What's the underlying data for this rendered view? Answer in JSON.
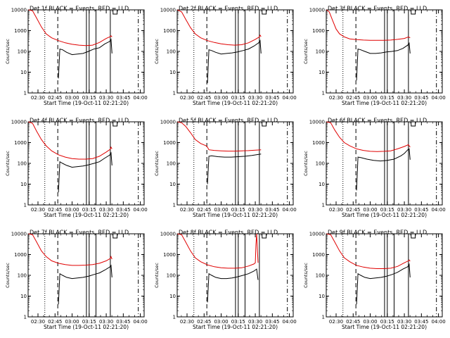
{
  "ylabel": "Counts/sec",
  "xlabel": "Start Time (19-Oct-11 02:21:20)",
  "xticks": [
    "02:30",
    "02:45",
    "03:00",
    "03:15",
    "03:30",
    "03:45",
    "04:00"
  ],
  "xlim": [
    2.3556,
    4.0556
  ],
  "yticks": [
    "1",
    "10",
    "100",
    "1000",
    "10000"
  ],
  "ylim": [
    1,
    10000
  ],
  "yscale": "log",
  "colors": {
    "events": "#000000",
    "lld": "#e00000",
    "axes": "#000000"
  },
  "markers": [
    {
      "style": "dotted",
      "time": 2.6
    },
    {
      "style": "dashed",
      "time": 2.79
    },
    {
      "style": "solid",
      "time": 3.21
    },
    {
      "style": "solid",
      "time": 3.25
    },
    {
      "style": "solid",
      "time": 3.35
    },
    {
      "style": "solid",
      "time": 3.56
    },
    {
      "style": "dashdot",
      "time": 3.97
    }
  ],
  "chart_data": [
    {
      "type": "line",
      "title": "Det 1f BLACK = Events, RED = LLD",
      "series": [
        {
          "name": "Events",
          "x": [
            2.36,
            2.45,
            2.55,
            2.65,
            2.72,
            2.78,
            2.8,
            2.82,
            2.86,
            2.92,
            3.0,
            3.08,
            3.16,
            3.24,
            3.32,
            3.4,
            3.48,
            3.55,
            3.57,
            3.585
          ],
          "y": [
            null,
            null,
            null,
            null,
            null,
            null,
            5,
            130,
            120,
            90,
            70,
            75,
            80,
            100,
            130,
            150,
            230,
            300,
            380,
            80
          ]
        },
        {
          "name": "LLD",
          "x": [
            2.36,
            2.42,
            2.48,
            2.55,
            2.62,
            2.7,
            2.8,
            2.9,
            3.0,
            3.1,
            3.2,
            3.3,
            3.4,
            3.5,
            3.56,
            3.57,
            3.585
          ],
          "y": [
            10000,
            9000,
            4000,
            1500,
            700,
            450,
            330,
            260,
            220,
            200,
            190,
            200,
            270,
            420,
            520,
            560,
            500
          ]
        }
      ]
    },
    {
      "type": "line",
      "title": "Det 2f BLACK = Events, RED = LLD",
      "series": [
        {
          "name": "Events",
          "x": [
            2.36,
            2.78,
            2.8,
            2.82,
            2.86,
            2.92,
            3.0,
            3.08,
            3.16,
            3.24,
            3.32,
            3.4,
            3.48,
            3.55,
            3.57,
            3.585
          ],
          "y": [
            null,
            null,
            3,
            120,
            110,
            90,
            75,
            80,
            85,
            95,
            110,
            130,
            180,
            260,
            330,
            80
          ]
        },
        {
          "name": "LLD",
          "x": [
            2.36,
            2.42,
            2.48,
            2.55,
            2.62,
            2.7,
            2.8,
            2.9,
            3.0,
            3.1,
            3.2,
            3.3,
            3.4,
            3.5,
            3.56,
            3.57,
            3.585
          ],
          "y": [
            10000,
            8000,
            3500,
            1400,
            700,
            450,
            330,
            270,
            230,
            210,
            200,
            210,
            260,
            380,
            500,
            600,
            520
          ]
        }
      ]
    },
    {
      "type": "line",
      "title": "Det 3f BLACK = Events, RED = LLD",
      "series": [
        {
          "name": "Events",
          "x": [
            2.36,
            2.78,
            2.8,
            2.82,
            2.86,
            2.92,
            3.0,
            3.08,
            3.16,
            3.24,
            3.32,
            3.4,
            3.48,
            3.55,
            3.57,
            3.585
          ],
          "y": [
            null,
            null,
            4,
            130,
            120,
            100,
            80,
            80,
            85,
            95,
            100,
            110,
            140,
            200,
            250,
            80
          ]
        },
        {
          "name": "LLD",
          "x": [
            2.36,
            2.4,
            2.45,
            2.5,
            2.55,
            2.62,
            2.7,
            2.8,
            2.9,
            3.0,
            3.1,
            3.2,
            3.3,
            3.4,
            3.5,
            3.56,
            3.585
          ],
          "y": [
            10000,
            8000,
            3000,
            1200,
            700,
            500,
            400,
            370,
            350,
            340,
            340,
            340,
            350,
            380,
            420,
            500,
            450
          ]
        }
      ]
    },
    {
      "type": "line",
      "title": "Det 4f BLACK = Events, RED = LLD",
      "series": [
        {
          "name": "Events",
          "x": [
            2.36,
            2.78,
            2.8,
            2.82,
            2.86,
            2.92,
            3.0,
            3.08,
            3.16,
            3.24,
            3.32,
            3.4,
            3.48,
            3.55,
            3.57,
            3.585
          ],
          "y": [
            null,
            null,
            4,
            120,
            100,
            80,
            65,
            70,
            75,
            85,
            100,
            120,
            180,
            250,
            320,
            80
          ]
        },
        {
          "name": "LLD",
          "x": [
            2.36,
            2.42,
            2.48,
            2.55,
            2.62,
            2.7,
            2.8,
            2.9,
            3.0,
            3.1,
            3.2,
            3.3,
            3.4,
            3.5,
            3.56,
            3.57,
            3.585
          ],
          "y": [
            10000,
            8500,
            3500,
            1400,
            700,
            400,
            260,
            200,
            170,
            160,
            160,
            170,
            220,
            350,
            480,
            600,
            500
          ]
        }
      ]
    },
    {
      "type": "line",
      "title": "Det 5f BLACK = Events, RED = LLD",
      "series": [
        {
          "name": "Events",
          "x": [
            2.36,
            2.78,
            2.8,
            2.82,
            2.86,
            2.95,
            3.05,
            3.15,
            3.25,
            3.35,
            3.45,
            3.55,
            3.585
          ],
          "y": [
            null,
            null,
            10,
            220,
            230,
            210,
            200,
            200,
            210,
            220,
            240,
            270,
            280
          ]
        },
        {
          "name": "LLD",
          "x": [
            2.36,
            2.42,
            2.48,
            2.55,
            2.62,
            2.7,
            2.78,
            2.8,
            2.82,
            2.9,
            3.0,
            3.1,
            3.2,
            3.3,
            3.4,
            3.5,
            3.585
          ],
          "y": [
            10000,
            9000,
            6000,
            3000,
            1400,
            900,
            700,
            600,
            450,
            420,
            400,
            390,
            390,
            400,
            410,
            430,
            450
          ]
        }
      ]
    },
    {
      "type": "line",
      "title": "Det 6f BLACK = Events, RED = LLD",
      "series": [
        {
          "name": "Events",
          "x": [
            2.36,
            2.78,
            2.8,
            2.82,
            2.86,
            2.95,
            3.05,
            3.15,
            3.25,
            3.35,
            3.45,
            3.5,
            3.55,
            3.57,
            3.585
          ],
          "y": [
            null,
            null,
            5,
            200,
            190,
            160,
            140,
            130,
            140,
            160,
            230,
            300,
            450,
            500,
            150
          ]
        },
        {
          "name": "LLD",
          "x": [
            2.36,
            2.42,
            2.48,
            2.55,
            2.62,
            2.7,
            2.8,
            2.9,
            3.0,
            3.1,
            3.2,
            3.3,
            3.4,
            3.5,
            3.56,
            3.585
          ],
          "y": [
            10000,
            9000,
            4000,
            1800,
            1000,
            700,
            500,
            420,
            380,
            370,
            380,
            400,
            500,
            650,
            800,
            600
          ]
        }
      ]
    },
    {
      "type": "line",
      "title": "Det 7f BLACK = Events, RED = LLD",
      "series": [
        {
          "name": "Events",
          "x": [
            2.36,
            2.78,
            2.8,
            2.82,
            2.86,
            2.92,
            3.0,
            3.08,
            3.16,
            3.24,
            3.32,
            3.4,
            3.48,
            3.55,
            3.57,
            3.585
          ],
          "y": [
            null,
            null,
            4,
            120,
            100,
            80,
            70,
            75,
            80,
            90,
            110,
            130,
            180,
            250,
            300,
            80
          ]
        },
        {
          "name": "LLD",
          "x": [
            2.36,
            2.42,
            2.48,
            2.55,
            2.62,
            2.7,
            2.8,
            2.9,
            3.0,
            3.1,
            3.2,
            3.3,
            3.4,
            3.5,
            3.56,
            3.57,
            3.585
          ],
          "y": [
            10000,
            9000,
            4000,
            1500,
            800,
            500,
            380,
            330,
            300,
            300,
            310,
            330,
            380,
            500,
            650,
            800,
            600
          ]
        }
      ]
    },
    {
      "type": "line",
      "title": "Det 8f BLACK = Events, RED = LLD",
      "series": [
        {
          "name": "Events",
          "x": [
            2.36,
            2.78,
            2.8,
            2.82,
            2.86,
            2.92,
            3.0,
            3.08,
            3.16,
            3.24,
            3.32,
            3.4,
            3.48,
            3.52,
            3.54
          ],
          "y": [
            null,
            null,
            5,
            120,
            100,
            80,
            70,
            70,
            75,
            85,
            100,
            120,
            160,
            200,
            60
          ]
        },
        {
          "name": "LLD",
          "x": [
            2.36,
            2.42,
            2.48,
            2.55,
            2.62,
            2.7,
            2.8,
            2.9,
            3.0,
            3.1,
            3.2,
            3.3,
            3.4,
            3.48,
            3.5,
            3.51,
            3.52,
            3.54
          ],
          "y": [
            10000,
            9000,
            4000,
            1500,
            700,
            450,
            320,
            260,
            230,
            220,
            220,
            230,
            280,
            350,
            400,
            3000,
            10000,
            400
          ]
        }
      ]
    },
    {
      "type": "line",
      "title": "Det 9f BLACK = Events, RED = LLD",
      "series": [
        {
          "name": "Events",
          "x": [
            2.36,
            2.78,
            2.8,
            2.82,
            2.86,
            2.92,
            3.0,
            3.08,
            3.16,
            3.24,
            3.32,
            3.4,
            3.48,
            3.55,
            3.57,
            3.585
          ],
          "y": [
            null,
            null,
            4,
            120,
            100,
            80,
            70,
            75,
            80,
            90,
            110,
            140,
            200,
            260,
            340,
            80
          ]
        },
        {
          "name": "LLD",
          "x": [
            2.36,
            2.42,
            2.48,
            2.55,
            2.62,
            2.7,
            2.8,
            2.9,
            3.0,
            3.1,
            3.2,
            3.3,
            3.4,
            3.5,
            3.56,
            3.57,
            3.585
          ],
          "y": [
            10000,
            9000,
            4000,
            1500,
            700,
            450,
            300,
            250,
            220,
            210,
            210,
            220,
            270,
            400,
            500,
            550,
            480
          ]
        }
      ]
    }
  ]
}
